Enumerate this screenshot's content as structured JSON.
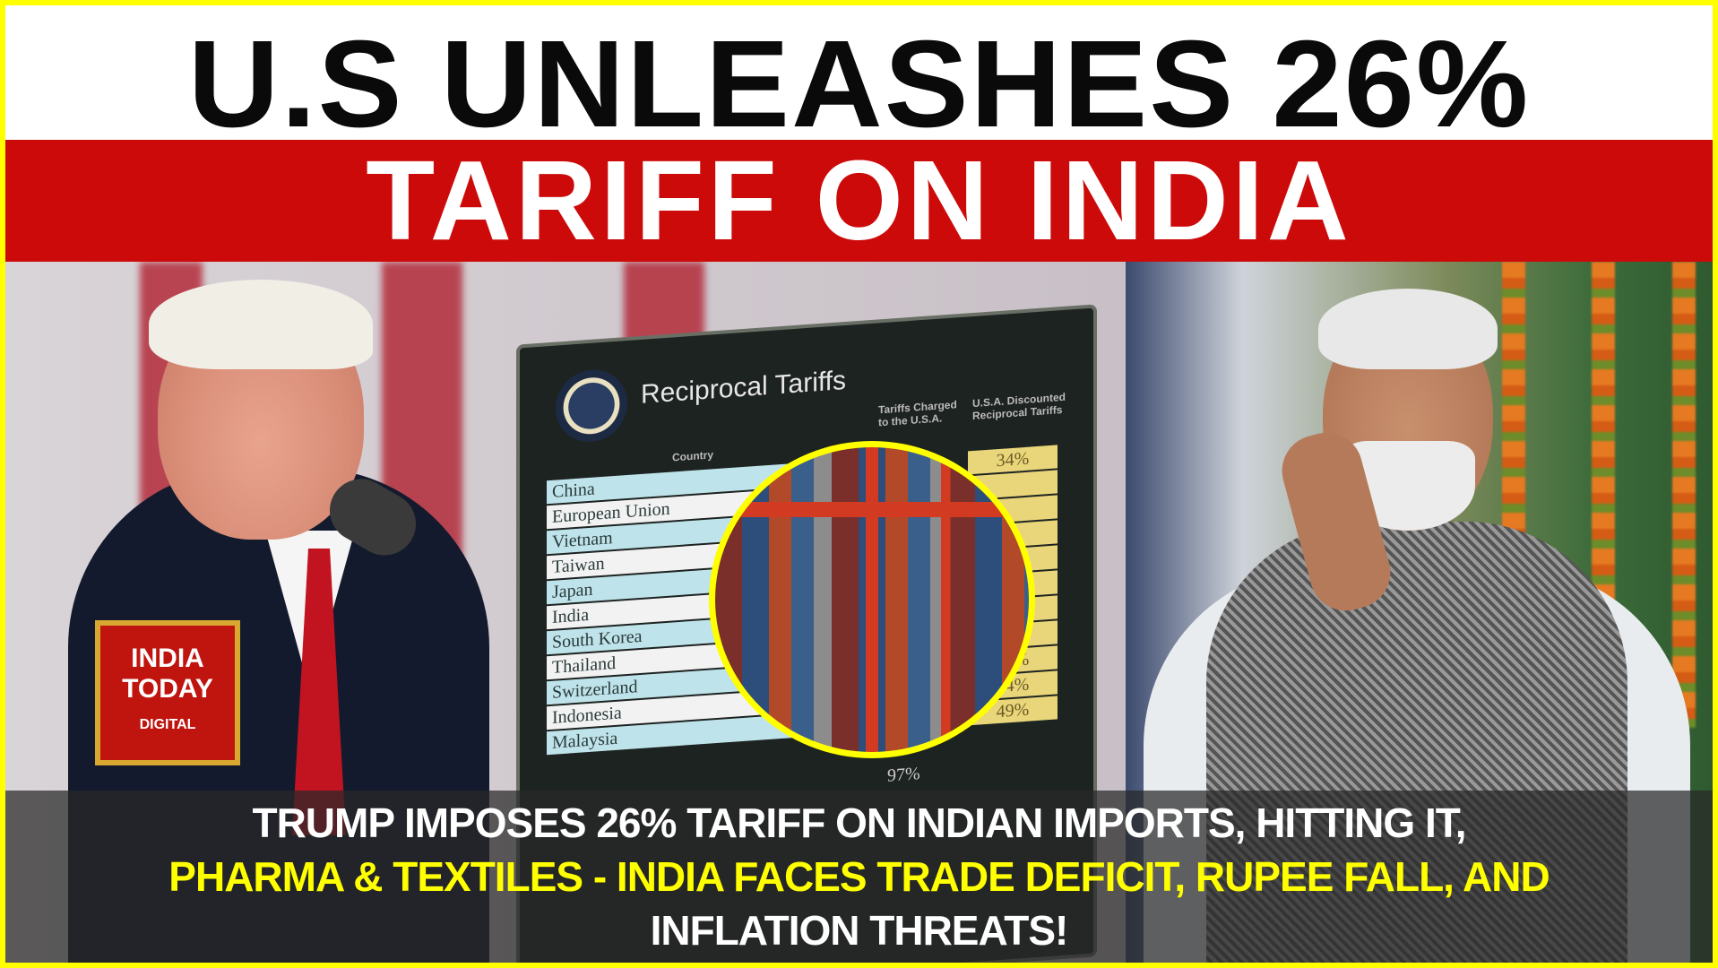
{
  "headline": {
    "line1": "U.S UNLEASHES 26%",
    "line2": "TARIFF ON INDIA"
  },
  "board": {
    "title": "Reciprocal Tariffs",
    "column_country": "Country",
    "column_charged": "Tariffs Charged to the U.S.A.",
    "column_discounted": "U.S.A. Discounted Reciprocal Tariffs",
    "countries": [
      "China",
      "European Union",
      "Vietnam",
      "Taiwan",
      "Japan",
      "India",
      "South Korea",
      "Thailand",
      "Switzerland",
      "Indonesia",
      "Malaysia"
    ],
    "visible_values": [
      "34%",
      "",
      "",
      "",
      "",
      "",
      "",
      "",
      "32%",
      "24%",
      "49%"
    ],
    "charged_visible": [
      "97%"
    ]
  },
  "logo": {
    "line1": "INDIA",
    "line2": "TODAY",
    "line3": "DIGITAL"
  },
  "caption": {
    "line1": "TRUMP IMPOSES 26% TARIFF ON INDIAN IMPORTS, HITTING IT,",
    "line2": "PHARMA & TEXTILES - INDIA FACES TRADE DEFICIT, RUPEE FALL, AND",
    "line3": "INFLATION THREATS!"
  },
  "colors": {
    "border": "#ffff00",
    "band": "#cc0a0a",
    "highlight": "#ffff00"
  }
}
